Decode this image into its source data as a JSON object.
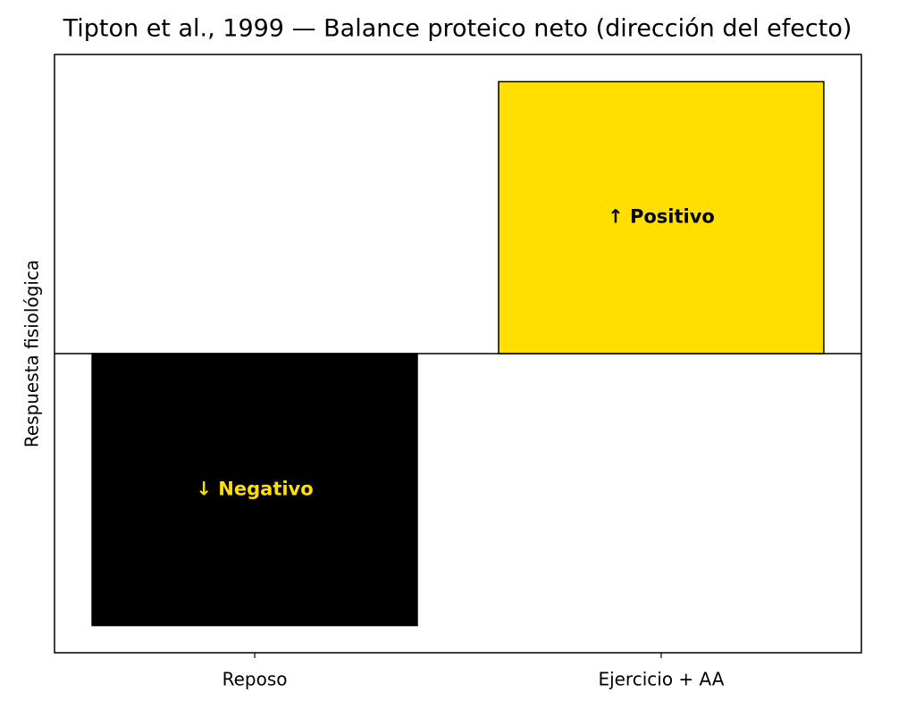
{
  "chart_data": {
    "type": "bar",
    "title": "Tipton et al., 1999 — Balance proteico neto (dirección del efecto)",
    "y_label": "Respuesta fisiológica",
    "categories": [
      "Reposo",
      "Ejercicio + AA"
    ],
    "values": [
      -1,
      1
    ],
    "value_labels": [
      "↓ Negativo",
      "↑ Positivo"
    ],
    "colors": [
      "#000000",
      "#FFDF00"
    ],
    "label_colors": [
      "#FFDF00",
      "#000000"
    ],
    "ylim": [
      -1.1,
      1.1
    ],
    "hline": 0,
    "grid": false
  }
}
